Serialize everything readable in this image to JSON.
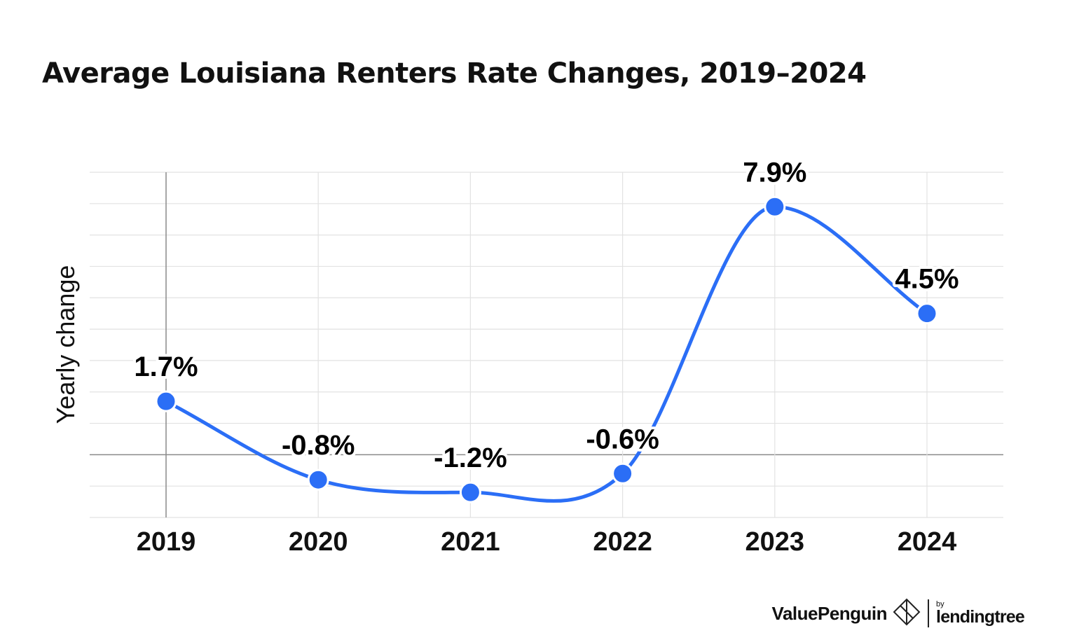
{
  "title": "Average Louisiana Renters Rate Changes, 2019–2024",
  "colors": {
    "line": "#2b6ef6",
    "grid": "#e2e2e2",
    "axis": "#8a8a8a",
    "text": "#111111"
  },
  "chart_data": {
    "type": "line",
    "title": "Average Louisiana Renters Rate Changes, 2019–2024",
    "xlabel": "",
    "ylabel": "Yearly change",
    "categories": [
      "2019",
      "2020",
      "2021",
      "2022",
      "2023",
      "2024"
    ],
    "values": [
      1.7,
      -0.8,
      -1.2,
      -0.6,
      7.9,
      4.5
    ],
    "data_labels": [
      "1.7%",
      "-0.8%",
      "-1.2%",
      "-0.6%",
      "7.9%",
      "4.5%"
    ],
    "ylim": [
      -2,
      9
    ],
    "grid_step": 1,
    "grid": true,
    "legend": false
  },
  "brand": {
    "name": "ValuePenguin",
    "by": "by",
    "partner": "lendingtree",
    "icon": "penguin-logo-icon"
  }
}
